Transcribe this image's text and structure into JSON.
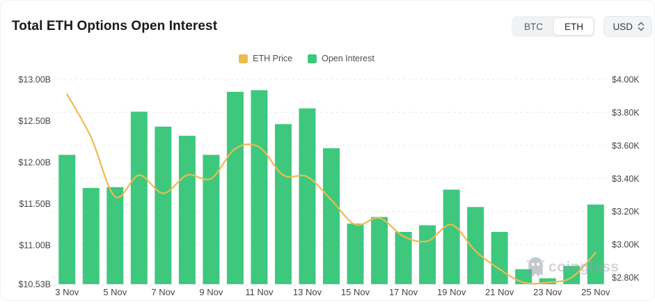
{
  "header": {
    "title": "Total ETH Options Open Interest"
  },
  "controls": {
    "coin_toggle": {
      "options": [
        "BTC",
        "ETH"
      ],
      "selected": "ETH"
    },
    "currency_select": {
      "value": "USD"
    }
  },
  "legend": {
    "position": "top-center",
    "items": [
      {
        "label": "ETH Price",
        "color": "#edbb50"
      },
      {
        "label": "Open Interest",
        "color": "#3ec87e"
      }
    ]
  },
  "watermark": {
    "text": "coinglass"
  },
  "chart_data": {
    "type": "bar",
    "title": "Total ETH Options Open Interest",
    "grid": "dashed-horizontal",
    "legend_position": "top-center",
    "categories": [
      "3 Nov",
      "4 Nov",
      "5 Nov",
      "6 Nov",
      "7 Nov",
      "8 Nov",
      "9 Nov",
      "10 Nov",
      "11 Nov",
      "12 Nov",
      "13 Nov",
      "14 Nov",
      "15 Nov",
      "16 Nov",
      "17 Nov",
      "18 Nov",
      "19 Nov",
      "20 Nov",
      "21 Nov",
      "22 Nov",
      "23 Nov",
      "24 Nov",
      "25 Nov"
    ],
    "x_tick_labels_shown": [
      "3 Nov",
      "5 Nov",
      "7 Nov",
      "9 Nov",
      "11 Nov",
      "13 Nov",
      "15 Nov",
      "17 Nov",
      "19 Nov",
      "21 Nov",
      "23 Nov",
      "25 Nov"
    ],
    "series": [
      {
        "name": "Open Interest",
        "type": "bar",
        "axis": "left",
        "unit": "$B",
        "color": "#3ec87e",
        "values": [
          12.09,
          11.69,
          11.7,
          12.61,
          12.43,
          12.32,
          12.09,
          12.85,
          12.87,
          12.46,
          12.65,
          12.17,
          11.26,
          11.34,
          11.16,
          11.24,
          11.67,
          11.46,
          11.16,
          10.71,
          10.6,
          10.75,
          11.49
        ]
      },
      {
        "name": "ETH Price",
        "type": "line",
        "axis": "right",
        "unit": "$K",
        "color": "#edbb50",
        "values": [
          3.91,
          3.65,
          3.29,
          3.42,
          3.31,
          3.42,
          3.4,
          3.58,
          3.59,
          3.42,
          3.41,
          3.27,
          3.12,
          3.16,
          3.05,
          3.02,
          3.12,
          2.96,
          2.85,
          2.77,
          2.77,
          2.8,
          2.95
        ]
      }
    ],
    "left_axis": {
      "tick_labels": [
        "$13.00B",
        "$12.50B",
        "$12.00B",
        "$11.50B",
        "$11.00B",
        "$10.53B"
      ],
      "tick_values": [
        13.0,
        12.5,
        12.0,
        11.5,
        11.0,
        10.53
      ],
      "min": 10.53,
      "max": 13.0
    },
    "right_axis": {
      "tick_labels": [
        "$4.00K",
        "$3.80K",
        "$3.60K",
        "$3.40K",
        "$3.20K",
        "$3.00K",
        "$2.80K"
      ],
      "tick_values": [
        4.0,
        3.8,
        3.6,
        3.4,
        3.2,
        3.0,
        2.8
      ],
      "min": 2.8,
      "max": 4.0
    }
  },
  "theme": {
    "bar_color": "#3ec87e",
    "line_color": "#edbb50",
    "grid_color": "#e9ebef",
    "axis_text_color": "#40464d",
    "axis_line_color": "#edeff2"
  }
}
